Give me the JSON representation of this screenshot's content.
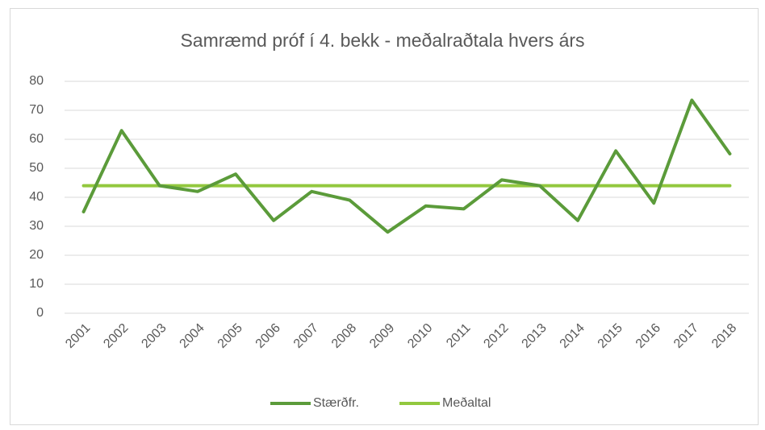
{
  "chart_data": {
    "type": "line",
    "title": "Samræmd próf í 4. bekk -  meðalraðtala hvers árs",
    "categories": [
      "2001",
      "2002",
      "2003",
      "2004",
      "2005",
      "2006",
      "2007",
      "2008",
      "2009",
      "2010",
      "2011",
      "2012",
      "2013",
      "2014",
      "2015",
      "2016",
      "2017",
      "2018"
    ],
    "series": [
      {
        "name": "Stærðfr.",
        "color": "#5b9b3a",
        "values": [
          35,
          63,
          44,
          42,
          48,
          32,
          42,
          39,
          28,
          37,
          36,
          46,
          44,
          32,
          56,
          38,
          73.5,
          55
        ]
      },
      {
        "name": "Meðaltal",
        "color": "#92c83e",
        "values": [
          44,
          44,
          44,
          44,
          44,
          44,
          44,
          44,
          44,
          44,
          44,
          44,
          44,
          44,
          44,
          44,
          44,
          44
        ]
      }
    ],
    "ylim": [
      0,
      80
    ],
    "yticks": [
      0,
      10,
      20,
      30,
      40,
      50,
      60,
      70,
      80
    ],
    "grid": true,
    "legend": "bottom"
  }
}
